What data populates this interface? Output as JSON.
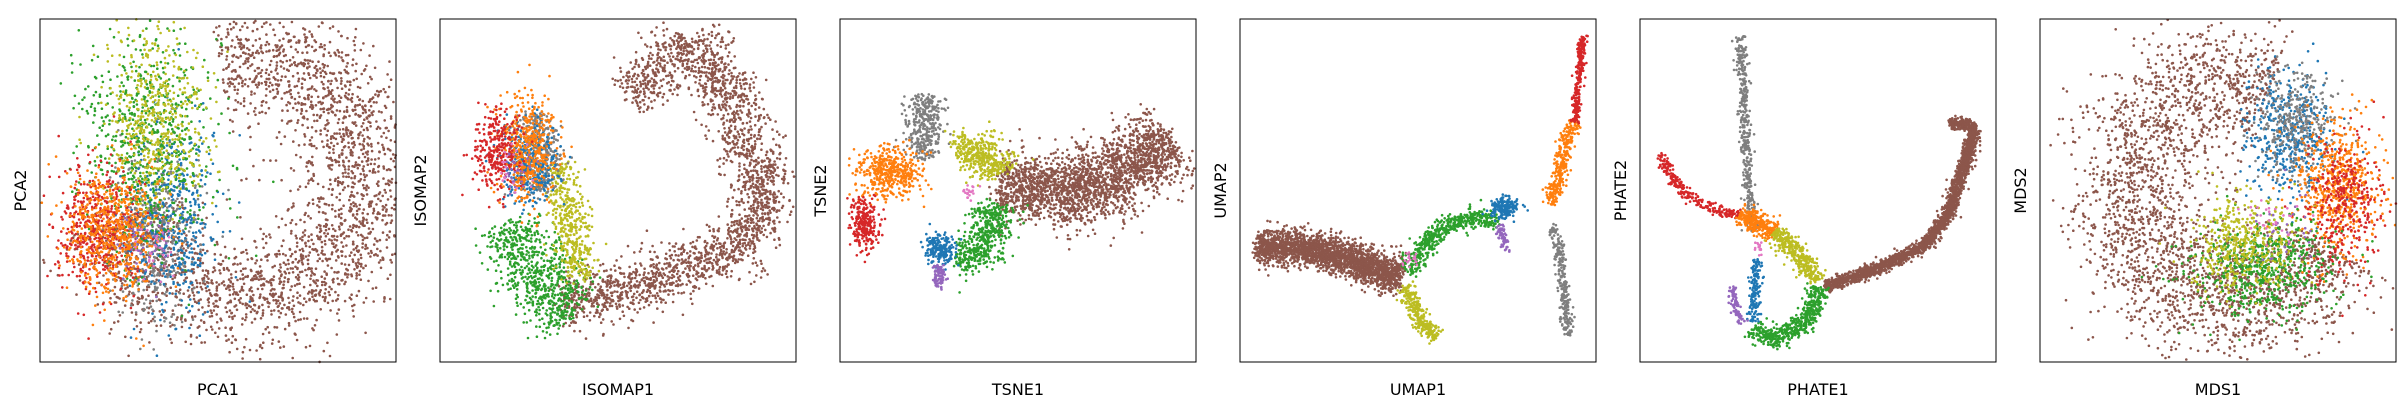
{
  "palette": {
    "blue": "#1f77b4",
    "orange": "#ff7f0e",
    "green": "#2ca02c",
    "red": "#d62728",
    "purple": "#9467bd",
    "brown": "#8c564b",
    "pink": "#e377c2",
    "gray": "#7f7f7f",
    "olive": "#bcbd22"
  },
  "chart_data": [
    {
      "type": "scatter",
      "xlabel": "PCA1",
      "ylabel": "PCA2",
      "xlim": [
        0,
        1
      ],
      "ylim": [
        0,
        1
      ],
      "ticks": "none",
      "grid": false,
      "clusters": [
        {
          "color": "brown",
          "shape": "arc",
          "points": 2600,
          "center": [
            0.56,
            0.54
          ],
          "r": 0.36,
          "width": 0.085,
          "a0": -160,
          "a1": 100,
          "yscale": 1.0
        },
        {
          "color": "gray",
          "shape": "blob",
          "points": 400,
          "center": [
            0.33,
            0.37
          ],
          "sx": 0.06,
          "sy": 0.13
        },
        {
          "color": "blue",
          "shape": "blob",
          "points": 450,
          "center": [
            0.37,
            0.42
          ],
          "sx": 0.065,
          "sy": 0.13
        },
        {
          "color": "green",
          "shape": "blob",
          "points": 700,
          "center": [
            0.3,
            0.64
          ],
          "sx": 0.09,
          "sy": 0.18
        },
        {
          "color": "olive",
          "shape": "blob",
          "points": 550,
          "center": [
            0.33,
            0.7
          ],
          "sx": 0.07,
          "sy": 0.14
        },
        {
          "color": "red",
          "shape": "blob",
          "points": 500,
          "center": [
            0.16,
            0.39
          ],
          "sx": 0.06,
          "sy": 0.09
        },
        {
          "color": "orange",
          "shape": "blob",
          "points": 600,
          "center": [
            0.2,
            0.38
          ],
          "sx": 0.065,
          "sy": 0.09
        },
        {
          "color": "purple",
          "shape": "blob",
          "points": 40,
          "center": [
            0.3,
            0.35
          ],
          "sx": 0.04,
          "sy": 0.05
        },
        {
          "color": "pink",
          "shape": "blob",
          "points": 30,
          "center": [
            0.32,
            0.34
          ],
          "sx": 0.04,
          "sy": 0.05
        }
      ]
    },
    {
      "type": "scatter",
      "xlabel": "ISOMAP1",
      "ylabel": "ISOMAP2",
      "xlim": [
        0,
        1
      ],
      "ylim": [
        0,
        1
      ],
      "ticks": "none",
      "grid": false,
      "clusters": [
        {
          "color": "brown",
          "shape": "path",
          "points": 2300,
          "width": 0.04,
          "path": [
            [
              0.34,
              0.16
            ],
            [
              0.5,
              0.2
            ],
            [
              0.7,
              0.28
            ],
            [
              0.88,
              0.36
            ],
            [
              0.92,
              0.5
            ],
            [
              0.85,
              0.66
            ],
            [
              0.8,
              0.84
            ],
            [
              0.7,
              0.93
            ],
            [
              0.6,
              0.84
            ],
            [
              0.53,
              0.78
            ]
          ]
        },
        {
          "color": "green",
          "shape": "path",
          "points": 700,
          "width": 0.05,
          "path": [
            [
              0.2,
              0.4
            ],
            [
              0.24,
              0.3
            ],
            [
              0.3,
              0.22
            ],
            [
              0.36,
              0.13
            ]
          ]
        },
        {
          "color": "olive",
          "shape": "path",
          "points": 450,
          "width": 0.025,
          "path": [
            [
              0.33,
              0.58
            ],
            [
              0.36,
              0.44
            ],
            [
              0.38,
              0.32
            ],
            [
              0.4,
              0.24
            ]
          ]
        },
        {
          "color": "gray",
          "shape": "path",
          "points": 350,
          "width": 0.03,
          "path": [
            [
              0.27,
              0.72
            ],
            [
              0.28,
              0.6
            ],
            [
              0.3,
              0.5
            ]
          ]
        },
        {
          "color": "blue",
          "shape": "blob",
          "points": 350,
          "center": [
            0.25,
            0.58
          ],
          "sx": 0.04,
          "sy": 0.06
        },
        {
          "color": "orange",
          "shape": "blob",
          "points": 450,
          "center": [
            0.25,
            0.62
          ],
          "sx": 0.04,
          "sy": 0.08
        },
        {
          "color": "red",
          "shape": "blob",
          "points": 300,
          "center": [
            0.16,
            0.62
          ],
          "sx": 0.035,
          "sy": 0.06
        },
        {
          "color": "purple",
          "shape": "blob",
          "points": 30,
          "center": [
            0.22,
            0.55
          ],
          "sx": 0.03,
          "sy": 0.04
        },
        {
          "color": "pink",
          "shape": "blob",
          "points": 20,
          "center": [
            0.2,
            0.57
          ],
          "sx": 0.03,
          "sy": 0.04
        }
      ]
    },
    {
      "type": "scatter",
      "xlabel": "TSNE1",
      "ylabel": "TSNE2",
      "xlim": [
        0,
        1
      ],
      "ylim": [
        0,
        1
      ],
      "ticks": "none",
      "grid": false,
      "clusters": [
        {
          "color": "brown",
          "shape": "path",
          "points": 2300,
          "width": 0.05,
          "path": [
            [
              0.45,
              0.52
            ],
            [
              0.58,
              0.49
            ],
            [
              0.7,
              0.5
            ],
            [
              0.8,
              0.55
            ],
            [
              0.87,
              0.62
            ],
            [
              0.92,
              0.66
            ]
          ]
        },
        {
          "color": "gray",
          "shape": "path",
          "points": 350,
          "width": 0.025,
          "path": [
            [
              0.24,
              0.78
            ],
            [
              0.24,
              0.68
            ],
            [
              0.23,
              0.6
            ]
          ]
        },
        {
          "color": "orange",
          "shape": "blob",
          "points": 450,
          "center": [
            0.14,
            0.55
          ],
          "sx": 0.045,
          "sy": 0.035
        },
        {
          "color": "red",
          "shape": "blob",
          "points": 250,
          "center": [
            0.07,
            0.4
          ],
          "sx": 0.02,
          "sy": 0.04
        },
        {
          "color": "olive",
          "shape": "path",
          "points": 400,
          "width": 0.03,
          "path": [
            [
              0.33,
              0.6
            ],
            [
              0.38,
              0.63
            ],
            [
              0.43,
              0.6
            ],
            [
              0.45,
              0.55
            ]
          ]
        },
        {
          "color": "green",
          "shape": "path",
          "points": 500,
          "width": 0.03,
          "path": [
            [
              0.43,
              0.46
            ],
            [
              0.42,
              0.36
            ],
            [
              0.38,
              0.3
            ],
            [
              0.33,
              0.31
            ]
          ]
        },
        {
          "color": "blue",
          "shape": "blob",
          "points": 200,
          "center": [
            0.28,
            0.33
          ],
          "sx": 0.02,
          "sy": 0.025
        },
        {
          "color": "purple",
          "shape": "path",
          "points": 80,
          "width": 0.01,
          "path": [
            [
              0.28,
              0.28
            ],
            [
              0.28,
              0.24
            ],
            [
              0.27,
              0.22
            ]
          ]
        },
        {
          "color": "pink",
          "shape": "blob",
          "points": 20,
          "center": [
            0.36,
            0.5
          ],
          "sx": 0.01,
          "sy": 0.01
        }
      ]
    },
    {
      "type": "scatter",
      "xlabel": "UMAP1",
      "ylabel": "UMAP2",
      "xlim": [
        0,
        1
      ],
      "ylim": [
        0,
        1
      ],
      "ticks": "none",
      "grid": false,
      "clusters": [
        {
          "color": "brown",
          "shape": "path",
          "points": 2300,
          "width": 0.025,
          "path": [
            [
              0.05,
              0.34
            ],
            [
              0.18,
              0.33
            ],
            [
              0.28,
              0.31
            ],
            [
              0.38,
              0.27
            ],
            [
              0.45,
              0.25
            ]
          ]
        },
        {
          "color": "olive",
          "shape": "path",
          "points": 300,
          "width": 0.012,
          "path": [
            [
              0.46,
              0.22
            ],
            [
              0.49,
              0.16
            ],
            [
              0.52,
              0.1
            ],
            [
              0.55,
              0.07
            ]
          ]
        },
        {
          "color": "green",
          "shape": "path",
          "points": 500,
          "width": 0.015,
          "path": [
            [
              0.47,
              0.26
            ],
            [
              0.52,
              0.34
            ],
            [
              0.58,
              0.4
            ],
            [
              0.66,
              0.42
            ],
            [
              0.72,
              0.42
            ]
          ]
        },
        {
          "color": "blue",
          "shape": "blob",
          "points": 200,
          "center": [
            0.74,
            0.45
          ],
          "sx": 0.02,
          "sy": 0.015
        },
        {
          "color": "purple",
          "shape": "path",
          "points": 60,
          "width": 0.006,
          "path": [
            [
              0.73,
              0.4
            ],
            [
              0.74,
              0.36
            ],
            [
              0.75,
              0.32
            ]
          ]
        },
        {
          "color": "gray",
          "shape": "path",
          "points": 250,
          "width": 0.008,
          "path": [
            [
              0.88,
              0.4
            ],
            [
              0.9,
              0.3
            ],
            [
              0.91,
              0.18
            ],
            [
              0.92,
              0.08
            ]
          ]
        },
        {
          "color": "orange",
          "shape": "path",
          "points": 300,
          "width": 0.01,
          "path": [
            [
              0.87,
              0.46
            ],
            [
              0.9,
              0.55
            ],
            [
              0.91,
              0.63
            ],
            [
              0.94,
              0.7
            ]
          ]
        },
        {
          "color": "red",
          "shape": "path",
          "points": 250,
          "width": 0.006,
          "path": [
            [
              0.94,
              0.7
            ],
            [
              0.95,
              0.8
            ],
            [
              0.96,
              0.9
            ],
            [
              0.96,
              0.95
            ]
          ]
        },
        {
          "color": "pink",
          "shape": "blob",
          "points": 20,
          "center": [
            0.48,
            0.3
          ],
          "sx": 0.01,
          "sy": 0.01
        }
      ]
    },
    {
      "type": "scatter",
      "xlabel": "PHATE1",
      "ylabel": "PHATE2",
      "xlim": [
        0,
        1
      ],
      "ylim": [
        0,
        1
      ],
      "ticks": "none",
      "grid": false,
      "clusters": [
        {
          "color": "brown",
          "shape": "path",
          "points": 2300,
          "width": 0.009,
          "path": [
            [
              0.52,
              0.22
            ],
            [
              0.66,
              0.27
            ],
            [
              0.8,
              0.34
            ],
            [
              0.87,
              0.44
            ],
            [
              0.92,
              0.6
            ],
            [
              0.94,
              0.68
            ],
            [
              0.91,
              0.7
            ],
            [
              0.87,
              0.69
            ]
          ]
        },
        {
          "color": "gray",
          "shape": "path",
          "points": 400,
          "width": 0.008,
          "path": [
            [
              0.28,
              0.95
            ],
            [
              0.29,
              0.8
            ],
            [
              0.3,
              0.6
            ],
            [
              0.31,
              0.45
            ],
            [
              0.32,
              0.38
            ]
          ]
        },
        {
          "color": "red",
          "shape": "path",
          "points": 250,
          "width": 0.008,
          "path": [
            [
              0.06,
              0.61
            ],
            [
              0.08,
              0.55
            ],
            [
              0.14,
              0.48
            ],
            [
              0.22,
              0.44
            ],
            [
              0.28,
              0.43
            ]
          ]
        },
        {
          "color": "orange",
          "shape": "path",
          "points": 300,
          "width": 0.015,
          "path": [
            [
              0.28,
              0.43
            ],
            [
              0.34,
              0.4
            ],
            [
              0.38,
              0.38
            ]
          ]
        },
        {
          "color": "olive",
          "shape": "path",
          "points": 350,
          "width": 0.015,
          "path": [
            [
              0.38,
              0.38
            ],
            [
              0.44,
              0.32
            ],
            [
              0.5,
              0.24
            ]
          ]
        },
        {
          "color": "green",
          "shape": "path",
          "points": 500,
          "width": 0.015,
          "path": [
            [
              0.5,
              0.22
            ],
            [
              0.48,
              0.14
            ],
            [
              0.42,
              0.08
            ],
            [
              0.36,
              0.07
            ],
            [
              0.32,
              0.1
            ]
          ]
        },
        {
          "color": "blue",
          "shape": "path",
          "points": 150,
          "width": 0.008,
          "path": [
            [
              0.33,
              0.3
            ],
            [
              0.32,
              0.2
            ],
            [
              0.32,
              0.12
            ]
          ]
        },
        {
          "color": "purple",
          "shape": "path",
          "points": 80,
          "width": 0.006,
          "path": [
            [
              0.26,
              0.22
            ],
            [
              0.27,
              0.15
            ],
            [
              0.29,
              0.11
            ]
          ]
        },
        {
          "color": "pink",
          "shape": "blob",
          "points": 15,
          "center": [
            0.33,
            0.33
          ],
          "sx": 0.01,
          "sy": 0.01
        }
      ]
    },
    {
      "type": "scatter",
      "xlabel": "MDS1",
      "ylabel": "MDS2",
      "xlim": [
        0,
        1
      ],
      "ylim": [
        0,
        1
      ],
      "ticks": "none",
      "grid": false,
      "clusters": [
        {
          "color": "brown",
          "shape": "arc",
          "points": 2600,
          "center": [
            0.55,
            0.5
          ],
          "r": 0.31,
          "width": 0.09,
          "a0": 70,
          "a1": 330,
          "yscale": 1.05
        },
        {
          "color": "blue",
          "shape": "blob",
          "points": 450,
          "center": [
            0.7,
            0.66
          ],
          "sx": 0.06,
          "sy": 0.1
        },
        {
          "color": "gray",
          "shape": "blob",
          "points": 350,
          "center": [
            0.72,
            0.7
          ],
          "sx": 0.05,
          "sy": 0.08
        },
        {
          "color": "orange",
          "shape": "blob",
          "points": 600,
          "center": [
            0.84,
            0.52
          ],
          "sx": 0.06,
          "sy": 0.1
        },
        {
          "color": "red",
          "shape": "blob",
          "points": 350,
          "center": [
            0.86,
            0.46
          ],
          "sx": 0.05,
          "sy": 0.1
        },
        {
          "color": "green",
          "shape": "blob",
          "points": 600,
          "center": [
            0.63,
            0.28
          ],
          "sx": 0.1,
          "sy": 0.07
        },
        {
          "color": "olive",
          "shape": "blob",
          "points": 450,
          "center": [
            0.58,
            0.34
          ],
          "sx": 0.07,
          "sy": 0.07
        },
        {
          "color": "purple",
          "shape": "blob",
          "points": 30,
          "center": [
            0.68,
            0.4
          ],
          "sx": 0.05,
          "sy": 0.05
        },
        {
          "color": "pink",
          "shape": "blob",
          "points": 30,
          "center": [
            0.66,
            0.42
          ],
          "sx": 0.05,
          "sy": 0.05
        }
      ]
    }
  ]
}
